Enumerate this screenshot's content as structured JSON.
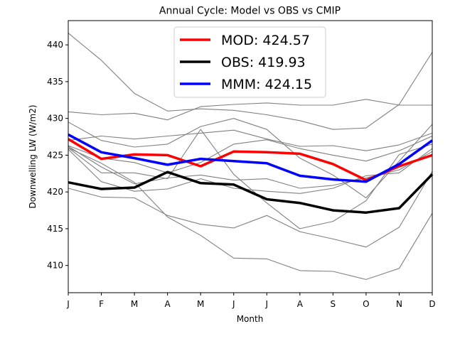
{
  "chart_data": {
    "type": "line",
    "title": "Annual Cycle: Model vs OBS vs CMIP",
    "xlabel": "Month",
    "ylabel": "Downwelling LW (W/m2)",
    "categories": [
      "J",
      "F",
      "M",
      "A",
      "M",
      "J",
      "J",
      "A",
      "S",
      "O",
      "N",
      "D"
    ],
    "ylim": [
      406.3,
      443.3
    ],
    "yticks": [
      410,
      415,
      420,
      425,
      430,
      435,
      440
    ],
    "grid": false,
    "legend_position": "top-center",
    "series": [
      {
        "name": "MOD: 424.57",
        "color": "#ff0000",
        "width": 3.5,
        "values": [
          427.2,
          424.5,
          425.1,
          425.0,
          423.5,
          425.5,
          425.4,
          425.2,
          423.8,
          421.6,
          423.5,
          425.0
        ]
      },
      {
        "name": "OBS: 419.93",
        "color": "#000000",
        "width": 3.5,
        "values": [
          421.3,
          420.4,
          420.6,
          422.7,
          421.2,
          421.0,
          419.0,
          418.5,
          417.5,
          417.2,
          417.8,
          422.4
        ]
      },
      {
        "name": "MMM: 424.15",
        "color": "#0000ff",
        "width": 3.5,
        "values": [
          427.8,
          425.4,
          424.6,
          423.7,
          424.5,
          424.2,
          423.9,
          422.2,
          421.7,
          421.4,
          423.8,
          427.0
        ]
      }
    ],
    "cmip_models": [
      {
        "color": "#808080",
        "values": [
          441.6,
          437.9,
          433.4,
          431.0,
          431.3,
          431.1,
          430.5,
          429.7,
          428.5,
          428.7,
          431.9,
          439.0
        ]
      },
      {
        "color": "#808080",
        "values": [
          430.9,
          430.5,
          430.7,
          429.8,
          431.6,
          431.9,
          432.1,
          431.8,
          431.8,
          432.6,
          431.8,
          431.8
        ]
      },
      {
        "color": "#808080",
        "values": [
          429.5,
          427.0,
          426.1,
          426.5,
          428.9,
          430.0,
          428.5,
          424.6,
          422.3,
          419.2,
          424.2,
          429.2
        ]
      },
      {
        "color": "#808080",
        "values": [
          427.0,
          427.6,
          427.2,
          427.6,
          428.0,
          428.4,
          427.2,
          426.2,
          426.3,
          425.6,
          426.4,
          428.0
        ]
      },
      {
        "color": "#808080",
        "values": [
          426.3,
          424.6,
          424.0,
          422.6,
          424.0,
          426.5,
          427.1,
          425.9,
          425.0,
          424.2,
          425.6,
          427.6
        ]
      },
      {
        "color": "#808080",
        "values": [
          426.0,
          423.9,
          421.3,
          416.6,
          414.1,
          411.0,
          410.9,
          409.3,
          409.2,
          408.1,
          409.6,
          417.1
        ]
      },
      {
        "color": "#808080",
        "values": [
          426.0,
          422.6,
          422.6,
          421.8,
          428.5,
          422.4,
          418.5,
          415.0,
          416.0,
          418.8,
          425.1,
          426.5
        ]
      },
      {
        "color": "#808080",
        "values": [
          426.2,
          423.4,
          421.1,
          421.9,
          422.3,
          421.6,
          421.8,
          420.5,
          420.9,
          421.9,
          423.0,
          425.5
        ]
      },
      {
        "color": "#808080",
        "values": [
          425.8,
          421.4,
          420.1,
          420.4,
          421.8,
          420.5,
          420.1,
          419.8,
          420.5,
          422.2,
          422.6,
          425.9
        ]
      },
      {
        "color": "#808080",
        "values": [
          420.5,
          419.3,
          419.2,
          416.8,
          415.6,
          415.1,
          416.8,
          414.6,
          413.6,
          412.5,
          415.2,
          422.8
        ]
      }
    ]
  }
}
